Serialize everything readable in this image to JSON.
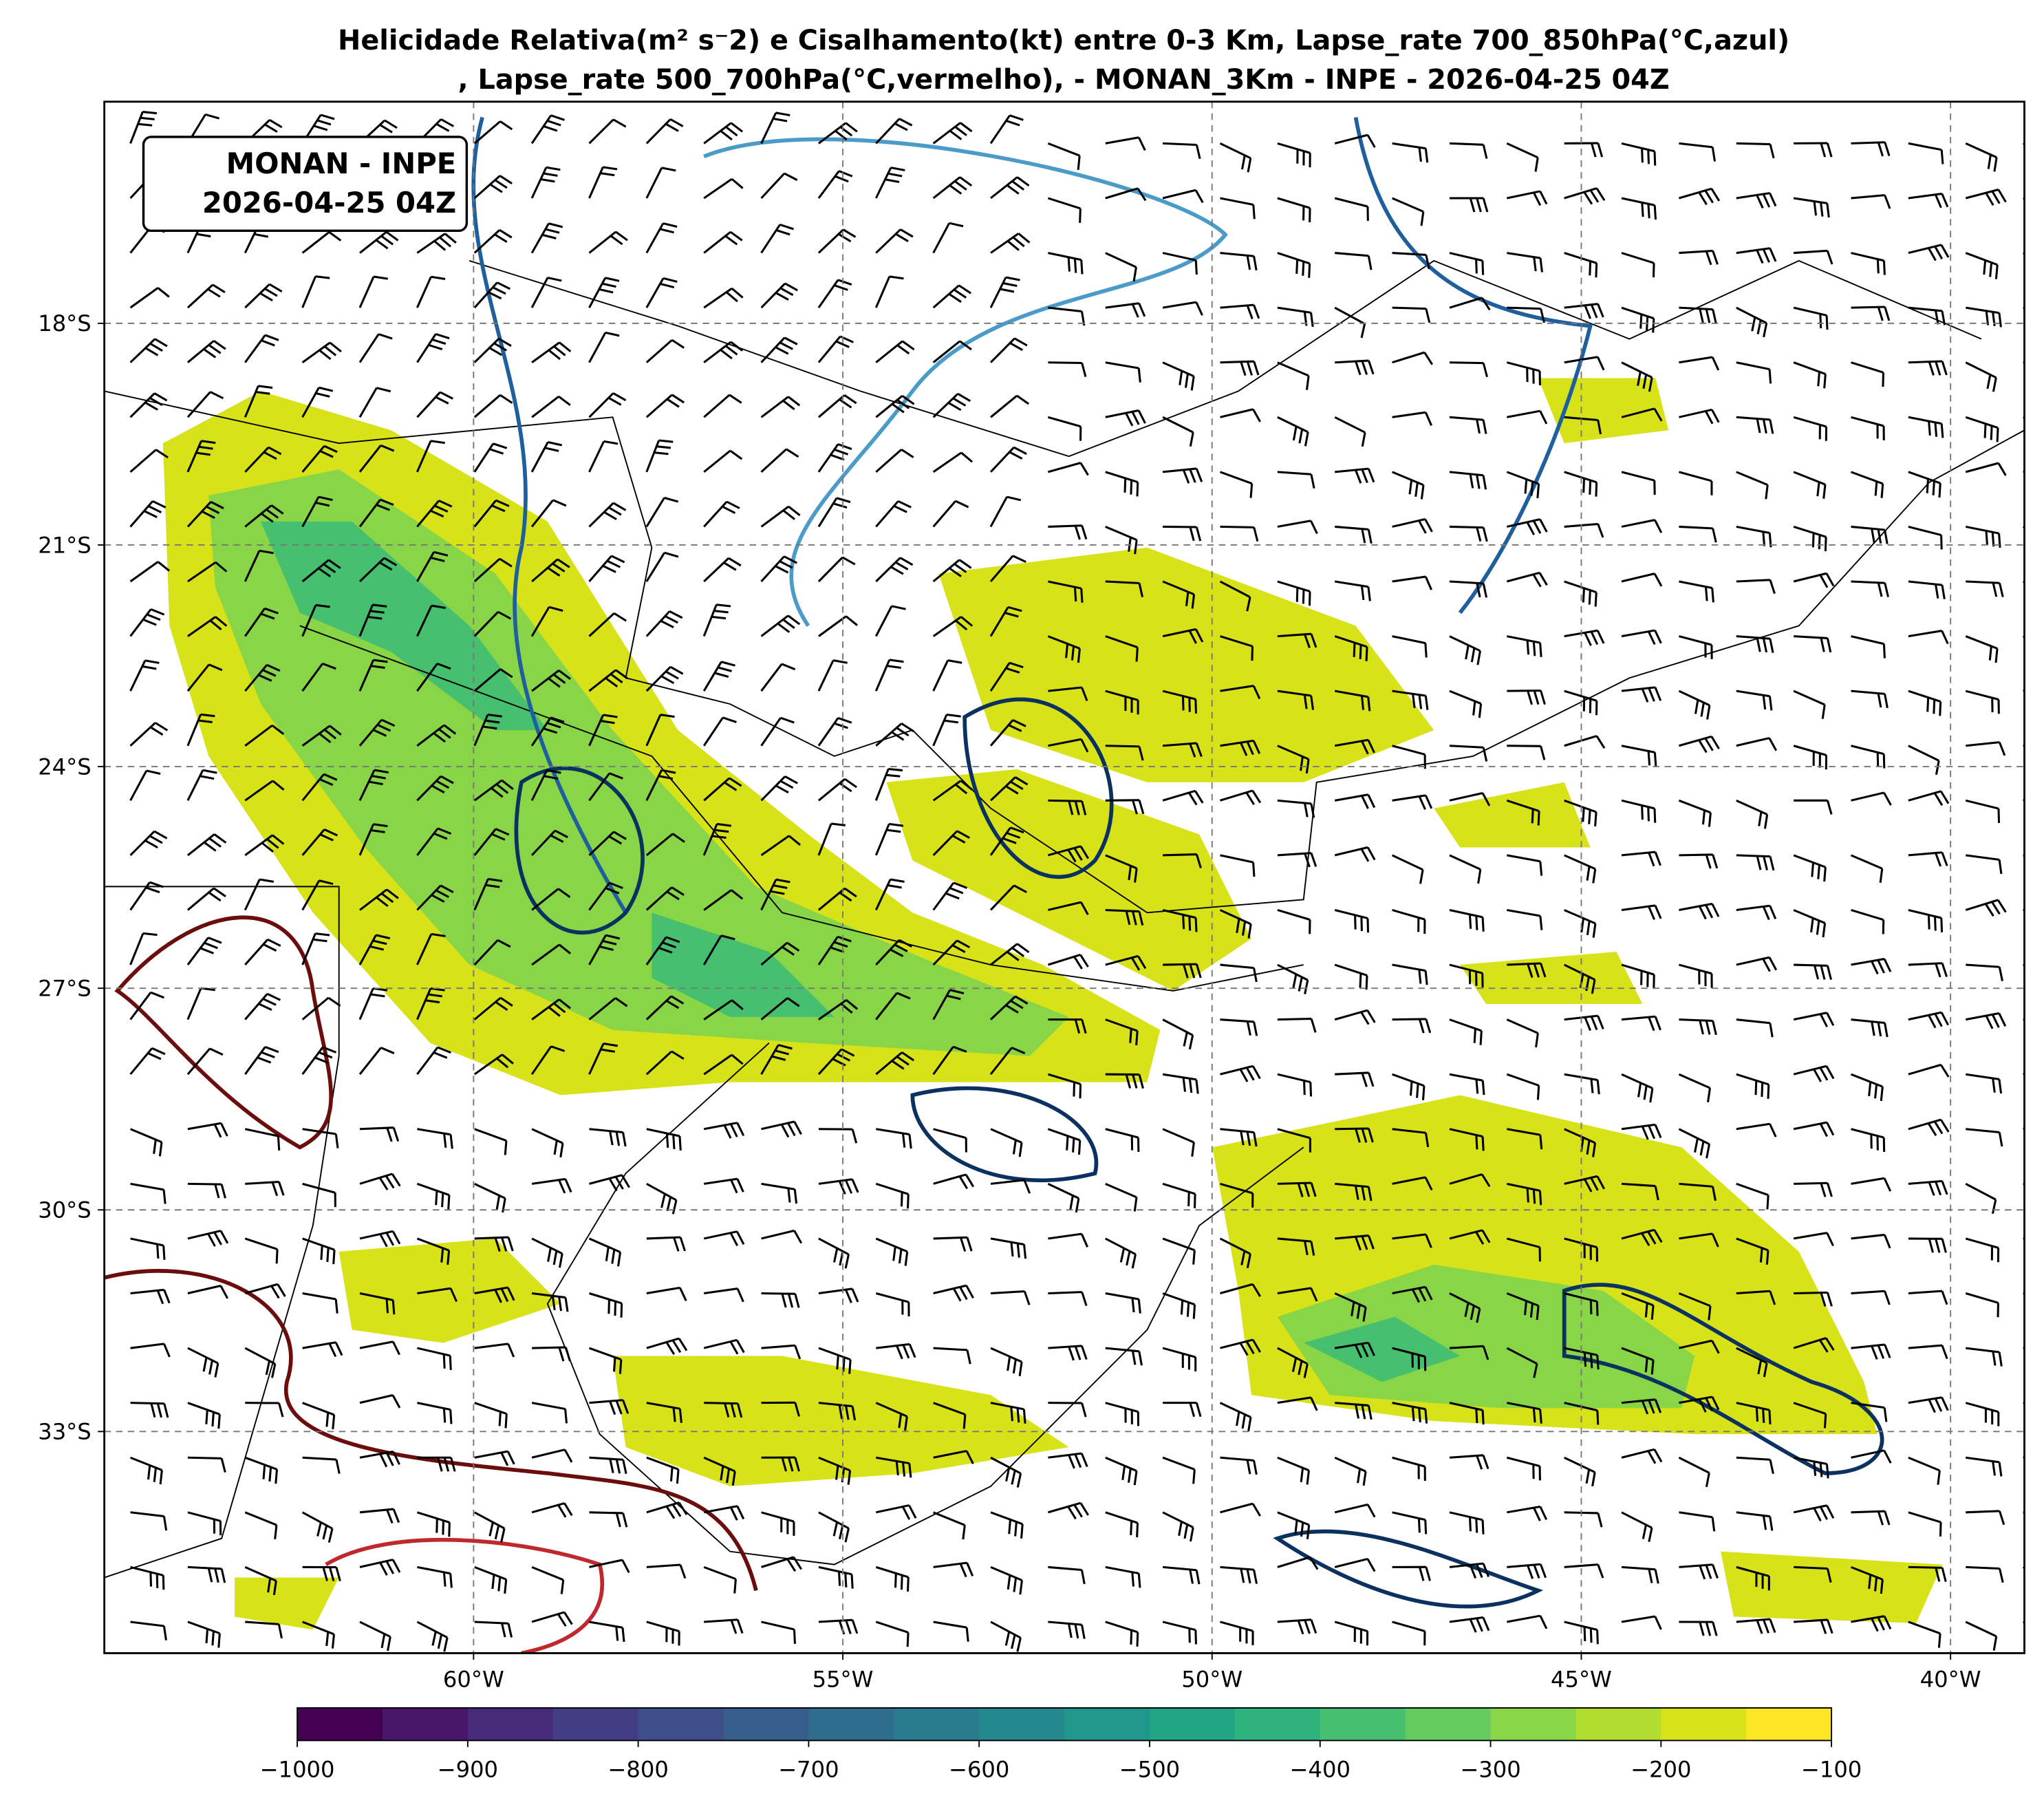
{
  "title_line1": "Helicidade Relativa(m² s⁻2) e Cisalhamento(kt) entre 0-3 Km, Lapse_rate 700_850hPa(°C,azul)",
  "title_line2": ", Lapse_rate 500_700hPa(°C,vermelho),  - MONAN_3Km - INPE - 2026-04-25 04Z",
  "label_box": [
    "MONAN - INPE",
    "2026-04-25 04Z"
  ],
  "map": {
    "lon_range": [
      -65,
      -39
    ],
    "lat_range": [
      -36,
      -15
    ],
    "lon_ticks": [
      {
        "value": -60,
        "label": "60°W"
      },
      {
        "value": -55,
        "label": "55°W"
      },
      {
        "value": -50,
        "label": "50°W"
      },
      {
        "value": -45,
        "label": "45°W"
      },
      {
        "value": -40,
        "label": "40°W"
      }
    ],
    "lat_ticks": [
      {
        "value": -18,
        "label": "18°S"
      },
      {
        "value": -21,
        "label": "21°S"
      },
      {
        "value": -24,
        "label": "24°S"
      },
      {
        "value": -27,
        "label": "27°S"
      },
      {
        "value": -30,
        "label": "30°S"
      },
      {
        "value": -33,
        "label": "33°S"
      }
    ]
  },
  "colorbar": {
    "range": [
      -1000,
      -100
    ],
    "colors": [
      "#440154",
      "#481769",
      "#472a7a",
      "#433d84",
      "#3d4e8a",
      "#355e8d",
      "#2e6d8e",
      "#297b8e",
      "#23898e",
      "#1f978b",
      "#21a585",
      "#2eb37c",
      "#46c06f",
      "#65cb5e",
      "#89d548",
      "#b0dd2f",
      "#d8e219",
      "#fde725"
    ],
    "ticks": [
      {
        "value": -1000,
        "label": "−1000"
      },
      {
        "value": -900,
        "label": "−900"
      },
      {
        "value": -800,
        "label": "−800"
      },
      {
        "value": -700,
        "label": "−700"
      },
      {
        "value": -600,
        "label": "−600"
      },
      {
        "value": -500,
        "label": "−500"
      },
      {
        "value": -400,
        "label": "−400"
      },
      {
        "value": -300,
        "label": "−300"
      },
      {
        "value": -200,
        "label": "−200"
      },
      {
        "value": -100,
        "label": "−100"
      }
    ]
  }
}
